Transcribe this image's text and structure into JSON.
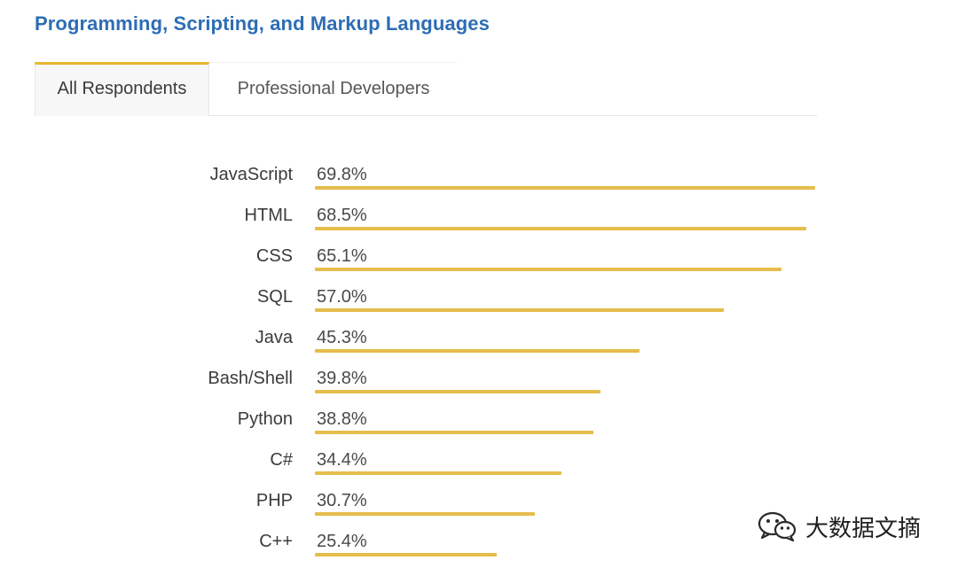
{
  "section": {
    "title": "Programming, Scripting, and Markup Languages"
  },
  "tabs": [
    {
      "label": "All Respondents",
      "active": true
    },
    {
      "label": "Professional Developers",
      "active": false
    }
  ],
  "colors": {
    "title": "#2e6db4",
    "bar": "#e5bd4c",
    "tab_accent": "#e7b62c"
  },
  "chart_data": {
    "type": "bar",
    "orientation": "horizontal",
    "title": "Programming, Scripting, and Markup Languages",
    "xlabel": "",
    "ylabel": "",
    "xlim": [
      0,
      70
    ],
    "categories": [
      "JavaScript",
      "HTML",
      "CSS",
      "SQL",
      "Java",
      "Bash/Shell",
      "Python",
      "C#",
      "PHP",
      "C++"
    ],
    "values": [
      69.8,
      68.5,
      65.1,
      57.0,
      45.3,
      39.8,
      38.8,
      34.4,
      30.7,
      25.4
    ],
    "value_labels": [
      "69.8%",
      "68.5%",
      "65.1%",
      "57.0%",
      "45.3%",
      "39.8%",
      "38.8%",
      "34.4%",
      "30.7%",
      "25.4%"
    ]
  },
  "watermark": {
    "icon": "wechat-icon",
    "text": "大数据文摘"
  }
}
